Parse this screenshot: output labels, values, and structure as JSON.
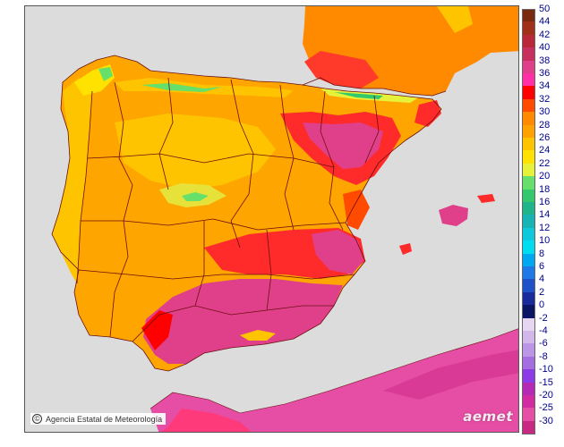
{
  "map": {
    "attribution": "Agencia Estatal de Meteorología",
    "copyright_symbol": "©",
    "logo_text": "aemet",
    "colors": {
      "sea": "#dcdcdc",
      "africa": "#e64da5",
      "border": "#6b0f0f",
      "base_land": "#ffa500"
    }
  },
  "legend": {
    "entries": [
      {
        "label": "50",
        "color": "#7a2a0e"
      },
      {
        "label": "44",
        "color": "#a0301a"
      },
      {
        "label": "42",
        "color": "#b8283a"
      },
      {
        "label": "40",
        "color": "#c7305e"
      },
      {
        "label": "38",
        "color": "#e0408a"
      },
      {
        "label": "36",
        "color": "#ff2fa6"
      },
      {
        "label": "34",
        "color": "#ff0000"
      },
      {
        "label": "32",
        "color": "#ff4a00"
      },
      {
        "label": "30",
        "color": "#ff8a00"
      },
      {
        "label": "28",
        "color": "#ffa200"
      },
      {
        "label": "26",
        "color": "#ffc400"
      },
      {
        "label": "24",
        "color": "#ffe200"
      },
      {
        "label": "22",
        "color": "#e6f23a"
      },
      {
        "label": "20",
        "color": "#66e06a"
      },
      {
        "label": "18",
        "color": "#33c86e"
      },
      {
        "label": "16",
        "color": "#20b48a"
      },
      {
        "label": "14",
        "color": "#18b4b4"
      },
      {
        "label": "12",
        "color": "#10c8dc"
      },
      {
        "label": "10",
        "color": "#00dcf0"
      },
      {
        "label": "8",
        "color": "#00a8f0"
      },
      {
        "label": "6",
        "color": "#1e78e6"
      },
      {
        "label": "4",
        "color": "#1e50c8"
      },
      {
        "label": "2",
        "color": "#1a2a9a"
      },
      {
        "label": "0",
        "color": "#0a1664"
      },
      {
        "label": "-2",
        "color": "#e6d6f0"
      },
      {
        "label": "-4",
        "color": "#d2b8ea"
      },
      {
        "label": "-6",
        "color": "#bc96e6"
      },
      {
        "label": "-8",
        "color": "#a46ee0"
      },
      {
        "label": "-10",
        "color": "#8c3ce6"
      },
      {
        "label": "-15",
        "color": "#b42ab4"
      },
      {
        "label": "-20",
        "color": "#d22aa0"
      },
      {
        "label": "-25",
        "color": "#e64da5"
      },
      {
        "label": "-30",
        "color": "#c82a82"
      }
    ]
  }
}
